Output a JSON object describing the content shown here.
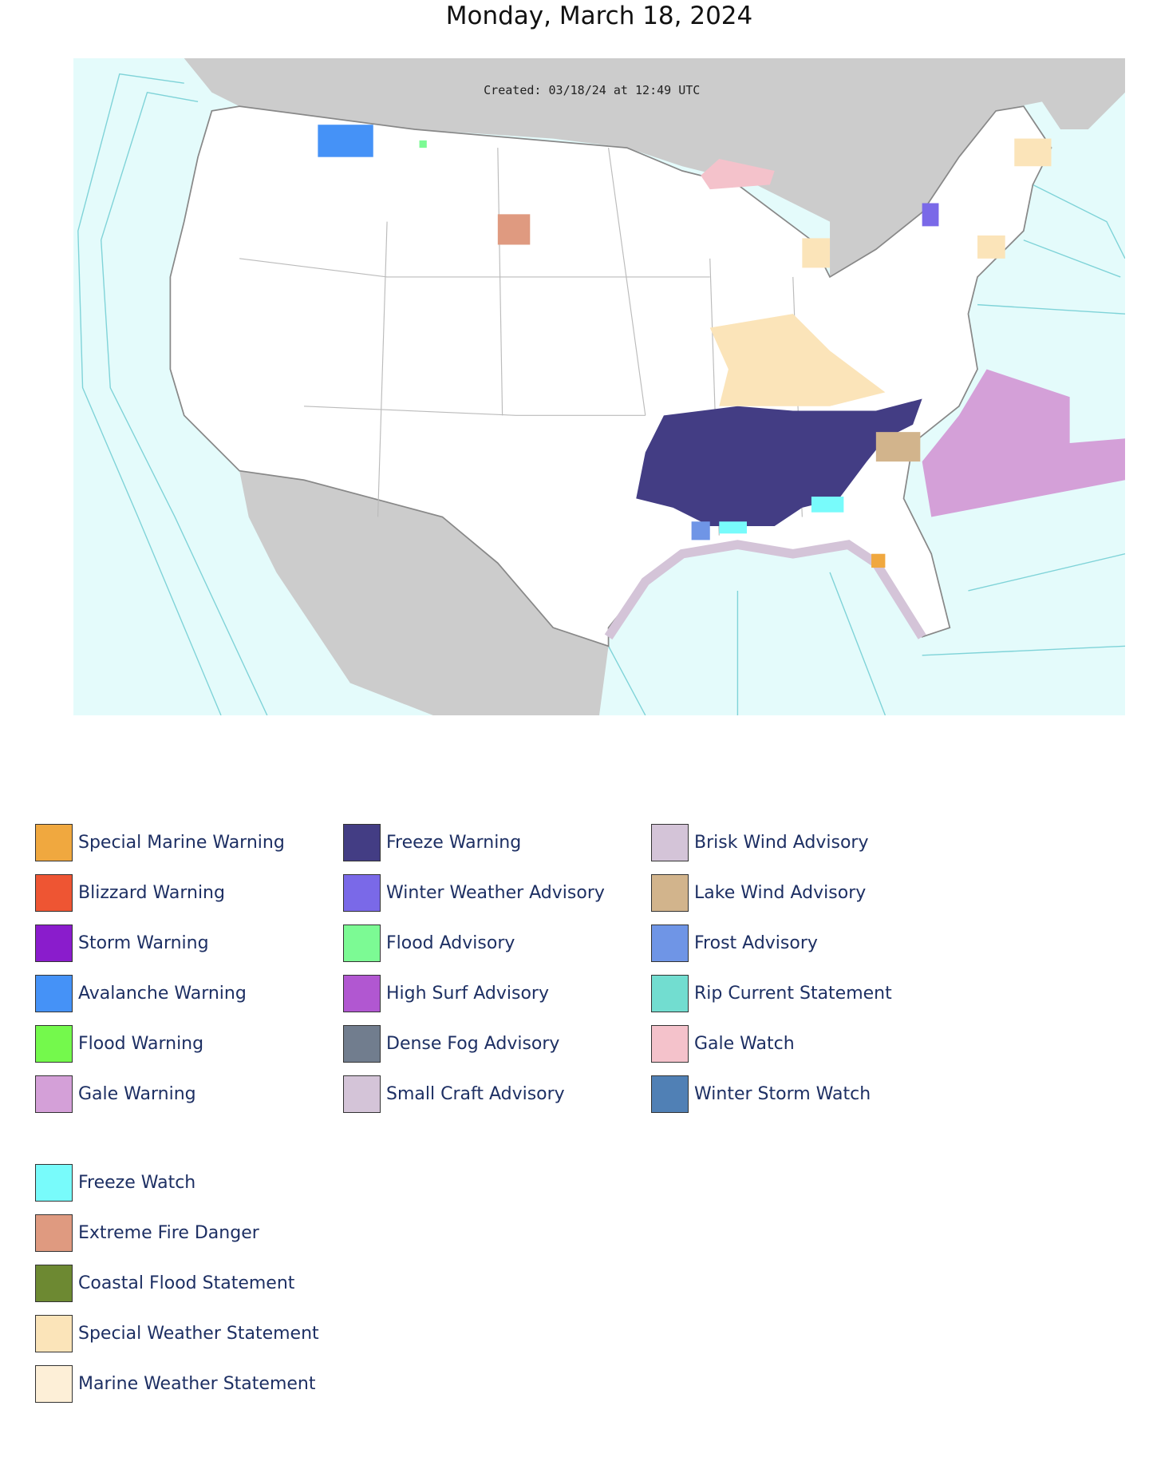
{
  "header": {
    "title": "Monday, March 18, 2024"
  },
  "map": {
    "created": "Created: 03/18/24 at 12:49 UTC"
  },
  "legend": {
    "groups": [
      {
        "items": [
          {
            "name": "Special Marine Warning",
            "color": "#f0a83f"
          },
          {
            "name": "Blizzard Warning",
            "color": "#ee5533"
          },
          {
            "name": "Storm Warning",
            "color": "#8a1ccc"
          },
          {
            "name": "Avalanche Warning",
            "color": "#4592f7"
          },
          {
            "name": "Flood Warning",
            "color": "#74f94c"
          },
          {
            "name": "Gale Warning",
            "color": "#d4a0d8"
          },
          {
            "name": "Freeze Warning",
            "color": "#433d84"
          },
          {
            "name": "Winter Weather Advisory",
            "color": "#7a69e8"
          },
          {
            "name": "Flood Advisory",
            "color": "#7cfa94"
          },
          {
            "name": "High Surf Advisory",
            "color": "#b157d1"
          },
          {
            "name": "Dense Fog Advisory",
            "color": "#717d8e"
          },
          {
            "name": "Small Craft Advisory",
            "color": "#d4c4d8"
          },
          {
            "name": "Brisk Wind Advisory",
            "color": "#d4c4d8"
          },
          {
            "name": "Lake Wind Advisory",
            "color": "#d2b48c"
          },
          {
            "name": "Frost Advisory",
            "color": "#6f95e6"
          },
          {
            "name": "Rip Current Statement",
            "color": "#72ddd0"
          },
          {
            "name": "Gale Watch",
            "color": "#f4c2cb"
          },
          {
            "name": "Winter Storm Watch",
            "color": "#5080b5"
          }
        ]
      },
      {
        "items": [
          {
            "name": "Freeze Watch",
            "color": "#78fbfb"
          },
          {
            "name": "Extreme Fire Danger",
            "color": "#df9a80"
          },
          {
            "name": "Coastal Flood Statement",
            "color": "#6d8932"
          },
          {
            "name": "Special Weather Statement",
            "color": "#fbe4b9"
          },
          {
            "name": "Marine Weather Statement",
            "color": "#fdefd7"
          }
        ]
      }
    ]
  }
}
